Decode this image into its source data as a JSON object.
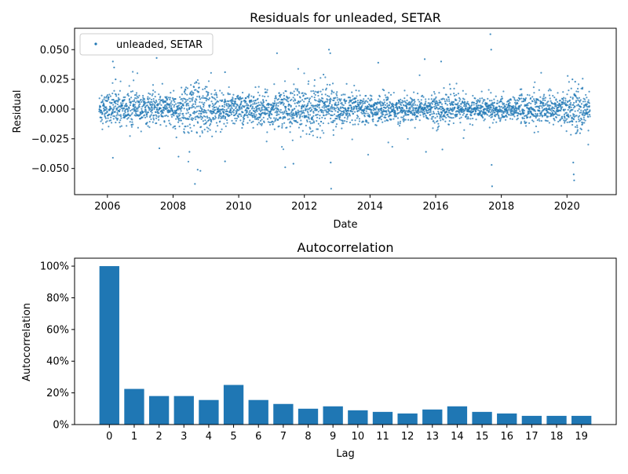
{
  "chart_data": [
    {
      "type": "scatter",
      "title": "Residuals for unleaded, SETAR",
      "xlabel": "Date",
      "ylabel": "Residual",
      "xlim": [
        "2005-01-01",
        "2021-07-01"
      ],
      "ylim": [
        -0.072,
        0.068
      ],
      "x_ticks": [
        "2006",
        "2008",
        "2010",
        "2012",
        "2014",
        "2016",
        "2018",
        "2020"
      ],
      "y_ticks": [
        "−0.050",
        "−0.025",
        "0.000",
        "0.025",
        "0.050"
      ],
      "x_tick_values": [
        "2006-01-01",
        "2008-01-01",
        "2010-01-01",
        "2012-01-01",
        "2014-01-01",
        "2016-01-01",
        "2018-01-01",
        "2020-01-01"
      ],
      "y_tick_values": [
        -0.05,
        -0.025,
        0.0,
        0.025,
        0.05
      ],
      "legend": {
        "position": "upper-left",
        "entries": [
          "unleaded, SETAR"
        ]
      },
      "color": "#1f77b4",
      "series": [
        {
          "name": "unleaded, SETAR",
          "date_range": [
            "2005-10-01",
            "2020-09-15"
          ],
          "points": [
            [
              "2006-03-01",
              0.04
            ],
            [
              "2006-03-15",
              0.035
            ],
            [
              "2006-04-01",
              0.025
            ],
            [
              "2006-03-01",
              -0.041
            ],
            [
              "2007-07-01",
              0.043
            ],
            [
              "2007-08-01",
              -0.033
            ],
            [
              "2008-03-01",
              -0.04
            ],
            [
              "2008-07-01",
              -0.036
            ],
            [
              "2008-09-01",
              -0.063
            ],
            [
              "2008-10-01",
              -0.051
            ],
            [
              "2008-11-01",
              -0.052
            ],
            [
              "2009-08-01",
              -0.044
            ],
            [
              "2009-08-01",
              0.031
            ],
            [
              "2011-03-01",
              0.047
            ],
            [
              "2011-06-01",
              -0.049
            ],
            [
              "2011-09-01",
              -0.046
            ],
            [
              "2012-08-01",
              0.029
            ],
            [
              "2012-10-01",
              0.05
            ],
            [
              "2012-10-15",
              0.047
            ],
            [
              "2012-10-20",
              -0.045
            ],
            [
              "2012-10-25",
              -0.067
            ],
            [
              "2014-04-01",
              0.039
            ],
            [
              "2015-09-01",
              0.042
            ],
            [
              "2015-09-15",
              -0.036
            ],
            [
              "2016-03-01",
              0.04
            ],
            [
              "2016-03-15",
              -0.034
            ],
            [
              "2017-09-01",
              0.063
            ],
            [
              "2017-09-10",
              0.05
            ],
            [
              "2017-09-15",
              -0.047
            ],
            [
              "2017-09-20",
              -0.065
            ],
            [
              "2020-03-01",
              0.025
            ],
            [
              "2020-03-10",
              -0.045
            ],
            [
              "2020-03-15",
              -0.055
            ],
            [
              "2020-03-20",
              -0.06
            ],
            [
              "2020-04-01",
              0.023
            ]
          ]
        }
      ]
    },
    {
      "type": "bar",
      "title": "Autocorrelation",
      "xlabel": "Lag",
      "ylabel": "Autocorrelation",
      "ylim": [
        0,
        1.05
      ],
      "y_ticks": [
        "0%",
        "20%",
        "40%",
        "60%",
        "80%",
        "100%"
      ],
      "y_tick_values": [
        0,
        0.2,
        0.4,
        0.6,
        0.8,
        1.0
      ],
      "color": "#1f77b4",
      "categories": [
        "0",
        "1",
        "2",
        "3",
        "4",
        "5",
        "6",
        "7",
        "8",
        "9",
        "10",
        "11",
        "12",
        "13",
        "14",
        "15",
        "16",
        "17",
        "18",
        "19"
      ],
      "values": [
        1.0,
        0.225,
        0.18,
        0.18,
        0.155,
        0.25,
        0.155,
        0.13,
        0.1,
        0.115,
        0.09,
        0.08,
        0.07,
        0.095,
        0.115,
        0.08,
        0.07,
        0.055,
        0.055,
        0.055
      ]
    }
  ]
}
